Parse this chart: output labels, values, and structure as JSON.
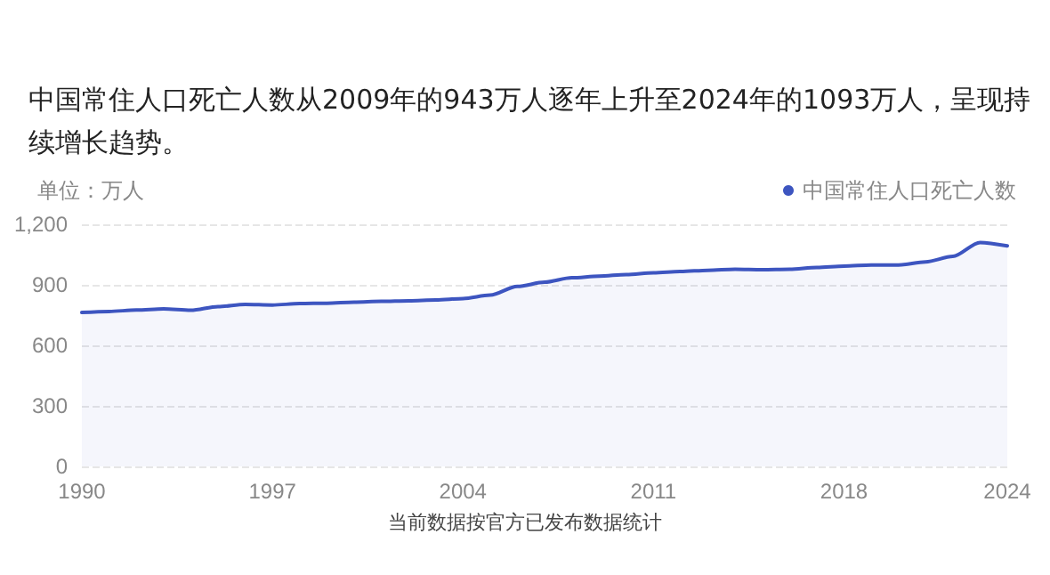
{
  "chart_data": {
    "type": "area",
    "subtitle": "中国常住人口死亡人数从2009年的943万人逐年上升至2024年的1093万人，呈现持续增长趋势。",
    "ylabel": "单位：万人",
    "annotations": [
      "当前数据按官方已发布数据统计"
    ],
    "categories": [
      "1990",
      null,
      null,
      null,
      null,
      null,
      null,
      "1997",
      null,
      null,
      null,
      null,
      null,
      null,
      "2004",
      null,
      null,
      null,
      null,
      null,
      null,
      "2011",
      null,
      null,
      null,
      null,
      null,
      null,
      "2018",
      null,
      null,
      null,
      null,
      null,
      "2024"
    ],
    "series": [
      {
        "name": "中国常住人口死亡人数",
        "color": "#3d55c0",
        "values": [
          763,
          768,
          775,
          781,
          774,
          792,
          803,
          800,
          807,
          809,
          814,
          818,
          821,
          825,
          832,
          849,
          892,
          913,
          935,
          943,
          951,
          960,
          966,
          972,
          977,
          975,
          977,
          986,
          993,
          998,
          998,
          1014,
          1041,
          1110,
          1093
        ]
      }
    ],
    "ylim": [
      0,
      1200
    ],
    "yticks": [
      0,
      300,
      600,
      900,
      {
        "value": 1200,
        "label": "1,200"
      }
    ],
    "grid": "y",
    "legend": "top right",
    "marker": "none",
    "line_style": "solid"
  }
}
